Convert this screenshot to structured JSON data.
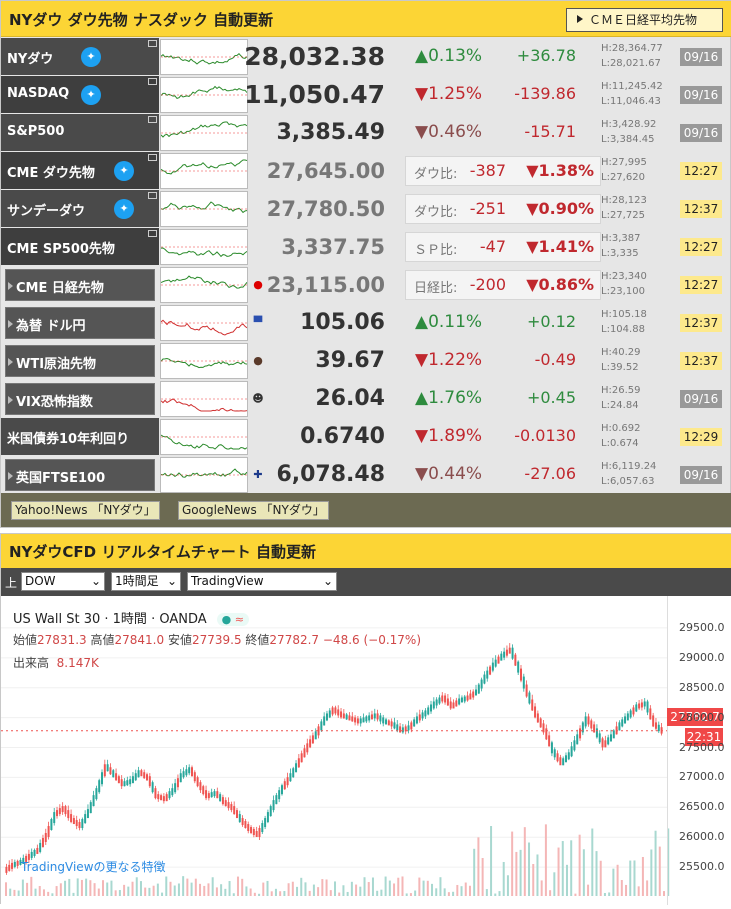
{
  "header": {
    "title": "NYダウ ダウ先物 ナスダック 自動更新",
    "cme_button": "ＣＭＥ日経平均先物"
  },
  "rows": [
    {
      "name": "NYダウ",
      "tw": true,
      "price": "28,032.38",
      "pct": "0.13%",
      "dir": "up",
      "chg": "+36.78",
      "h": "H:28,364.77",
      "l": "L:28,021.67",
      "date": "09/16",
      "dtype": "g"
    },
    {
      "name": "NASDAQ",
      "tw": true,
      "price": "11,050.47",
      "pct": "1.25%",
      "dir": "dn",
      "chg": "-139.86",
      "h": "H:11,245.42",
      "l": "L:11,046.43",
      "date": "09/16",
      "dtype": "g"
    },
    {
      "name": "S&P500",
      "tw": false,
      "price": "3,385.49",
      "pct": "0.46%",
      "dir": "dng",
      "chg": "-15.71",
      "h": "H:3,428.92",
      "l": "L:3,384.45",
      "date": "09/16",
      "dtype": "g"
    },
    {
      "name": "CME ダウ先物",
      "tw": true,
      "price": "27,645.00",
      "blabel": "ダウ比:",
      "bval": "-387",
      "bpct": "▼1.38%",
      "h": "H:27,995",
      "l": "L:27,620",
      "date": "12:27",
      "dtype": "y"
    },
    {
      "name": "サンデーダウ",
      "tw": true,
      "price": "27,780.50",
      "blabel": "ダウ比:",
      "bval": "-251",
      "bpct": "▼0.90%",
      "h": "H:28,123",
      "l": "L:27,725",
      "date": "12:37",
      "dtype": "y"
    },
    {
      "name": "CME SP500先物",
      "tw": false,
      "price": "3,337.75",
      "blabel": "ＳＰ比:",
      "bval": "-47",
      "bpct": "▼1.41%",
      "h": "H:3,387",
      "l": "L:3,335",
      "date": "12:27",
      "dtype": "y"
    },
    {
      "name": "CME 日経先物",
      "sub": true,
      "price": "23,115.00",
      "blabel": "日経比:",
      "bval": "-200",
      "bpct": "▼0.86%",
      "h": "H:23,340",
      "l": "L:23,100",
      "date": "12:27",
      "dtype": "y"
    },
    {
      "name": "為替 ドル円",
      "sub": true,
      "price": "105.06",
      "pct": "0.11%",
      "dir": "up",
      "chg": "+0.12",
      "h": "H:105.18",
      "l": "L:104.88",
      "date": "12:37",
      "dtype": "y"
    },
    {
      "name": "WTI原油先物",
      "sub": true,
      "price": "39.67",
      "pct": "1.22%",
      "dir": "dn",
      "chg": "-0.49",
      "h": "H:40.29",
      "l": "L:39.52",
      "date": "12:37",
      "dtype": "y"
    },
    {
      "name": "VIX恐怖指数",
      "sub": true,
      "price": "26.04",
      "pct": "1.76%",
      "dir": "up",
      "chg": "+0.45",
      "h": "H:26.59",
      "l": "L:24.84",
      "date": "09/16",
      "dtype": "g"
    },
    {
      "name": "米国債券10年利回り",
      "price": "0.6740",
      "pct": "1.89%",
      "dir": "dn",
      "chg": "-0.0130",
      "h": "H:0.692",
      "l": "L:0.674",
      "date": "12:29",
      "dtype": "y"
    },
    {
      "name": "英国FTSE100",
      "sub": true,
      "price": "6,078.48",
      "pct": "0.44%",
      "dir": "dng",
      "chg": "-27.06",
      "h": "H:6,119.24",
      "l": "L:6,057.63",
      "date": "09/16",
      "dtype": "g"
    }
  ],
  "news": [
    "Yahoo!News 「NYダウ」",
    "GoogleNews 「NYダウ」"
  ],
  "chart_panel": {
    "title": "NYダウCFD リアルタイムチャート 自動更新",
    "up_label": "上",
    "sel1": "DOW",
    "sel2": "1時間足",
    "sel3": "TradingView",
    "symbol": "US Wall St 30 · 1時間 · OANDA",
    "ohlc": {
      "o_l": "始値",
      "o": "27831.3",
      "h_l": "高値",
      "h": "27841.0",
      "l_l": "安値",
      "l": "27739.5",
      "c_l": "終値",
      "c": "27782.7",
      "chg": "−48.6 (−0.17%)"
    },
    "vol_label": "出来高",
    "vol": "8.147K",
    "tv_link": "TradingViewの更なる特徴",
    "last": "27782.7",
    "time": "22:31"
  },
  "chart_data": {
    "type": "line",
    "title": "US Wall St 30",
    "y_ticks": [
      "29500.0",
      "29000.0",
      "28500.0",
      "28000.0",
      "27500.0",
      "27000.0",
      "26500.0",
      "26000.0",
      "25500.0"
    ],
    "ylim": [
      25100,
      29800
    ],
    "values": [
      25450,
      25550,
      25600,
      25700,
      25800,
      26050,
      26400,
      26500,
      26300,
      26200,
      26450,
      26800,
      27200,
      27050,
      26900,
      26950,
      27100,
      27000,
      26700,
      26650,
      26800,
      27050,
      27150,
      26900,
      26700,
      26750,
      26600,
      26500,
      26300,
      26150,
      26050,
      26300,
      26600,
      26850,
      27050,
      27300,
      27550,
      27750,
      28000,
      28150,
      28050,
      28000,
      27950,
      28000,
      28050,
      27950,
      27900,
      27800,
      27850,
      28000,
      28100,
      28250,
      28350,
      28200,
      28300,
      28350,
      28450,
      28700,
      28900,
      29050,
      29150,
      28800,
      28400,
      28050,
      27800,
      27450,
      27250,
      27400,
      27700,
      28000,
      27800,
      27550,
      27700,
      27900,
      28050,
      28200,
      28250,
      27900,
      27780
    ]
  }
}
